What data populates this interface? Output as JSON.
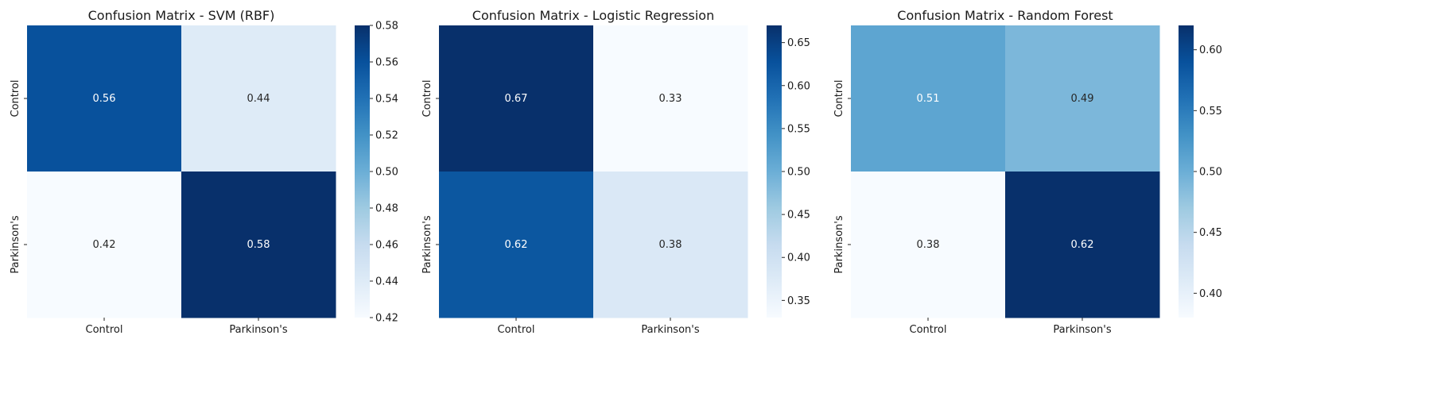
{
  "chart_data": [
    {
      "type": "heatmap",
      "title": "Confusion Matrix - SVM (RBF)",
      "row_labels": [
        "Control",
        "Parkinson's"
      ],
      "col_labels": [
        "Control",
        "Parkinson's"
      ],
      "values": [
        [
          0.56,
          0.44
        ],
        [
          0.42,
          0.58
        ]
      ],
      "value_labels": [
        [
          "0.56",
          "0.44"
        ],
        [
          "0.42",
          "0.58"
        ]
      ],
      "colorbar": {
        "min": 0.42,
        "max": 0.58,
        "colormap": "Blues",
        "ticks": [
          "0.42",
          "0.44",
          "0.46",
          "0.48",
          "0.50",
          "0.52",
          "0.54",
          "0.56",
          "0.58"
        ]
      }
    },
    {
      "type": "heatmap",
      "title": "Confusion Matrix - Logistic Regression",
      "row_labels": [
        "Control",
        "Parkinson's"
      ],
      "col_labels": [
        "Control",
        "Parkinson's"
      ],
      "values": [
        [
          0.67,
          0.33
        ],
        [
          0.62,
          0.38
        ]
      ],
      "value_labels": [
        [
          "0.67",
          "0.33"
        ],
        [
          "0.62",
          "0.38"
        ]
      ],
      "colorbar": {
        "min": 0.33,
        "max": 0.67,
        "colormap": "Blues",
        "ticks": [
          "0.35",
          "0.40",
          "0.45",
          "0.50",
          "0.55",
          "0.60",
          "0.65"
        ]
      }
    },
    {
      "type": "heatmap",
      "title": "Confusion Matrix - Random Forest",
      "row_labels": [
        "Control",
        "Parkinson's"
      ],
      "col_labels": [
        "Control",
        "Parkinson's"
      ],
      "values": [
        [
          0.51,
          0.49
        ],
        [
          0.38,
          0.62
        ]
      ],
      "value_labels": [
        [
          "0.51",
          "0.49"
        ],
        [
          "0.38",
          "0.62"
        ]
      ],
      "colorbar": {
        "min": 0.38,
        "max": 0.62,
        "colormap": "Blues",
        "ticks": [
          "0.40",
          "0.45",
          "0.50",
          "0.55",
          "0.60"
        ]
      }
    }
  ]
}
